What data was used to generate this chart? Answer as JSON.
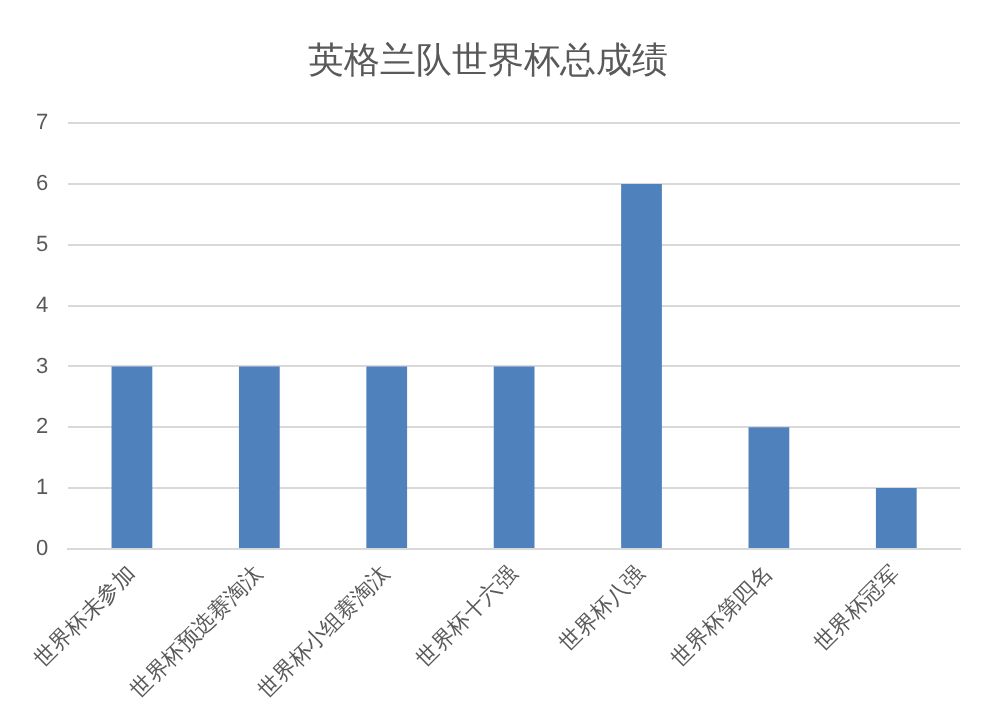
{
  "chart_data": {
    "type": "bar",
    "title": "英格兰队世界杯总成绩",
    "categories": [
      "世界杯未参加",
      "世界杯预选赛淘汰",
      "世界杯小组赛淘汰",
      "世界杯十六强",
      "世界杯八强",
      "世界杯第四名",
      "世界杯冠军"
    ],
    "values": [
      3,
      3,
      3,
      3,
      6,
      2,
      1
    ],
    "color": "#4f81bd",
    "ylim": [
      0,
      7
    ],
    "yticks": [
      0,
      1,
      2,
      3,
      4,
      5,
      6,
      7
    ],
    "grid": "y",
    "legend": false
  }
}
